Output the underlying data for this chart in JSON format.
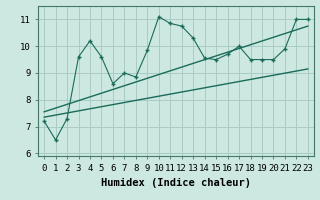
{
  "title": "",
  "xlabel": "Humidex (Indice chaleur)",
  "ylabel": "",
  "bg_color": "#cce8e0",
  "grid_color": "#aaccc4",
  "line_color": "#1a6b5a",
  "scatter_x": [
    0,
    1,
    2,
    3,
    4,
    5,
    6,
    7,
    8,
    9,
    10,
    11,
    12,
    13,
    14,
    15,
    16,
    17,
    18,
    19,
    20,
    21,
    22,
    23
  ],
  "scatter_y": [
    7.2,
    6.5,
    7.3,
    9.6,
    10.2,
    9.6,
    8.6,
    9.0,
    8.85,
    9.85,
    11.1,
    10.85,
    10.75,
    10.3,
    9.55,
    9.5,
    9.7,
    10.0,
    9.5,
    9.5,
    9.5,
    9.9,
    11.0,
    11.0
  ],
  "line1_x": [
    0,
    23
  ],
  "line1_y": [
    7.55,
    10.75
  ],
  "line2_x": [
    0,
    23
  ],
  "line2_y": [
    7.35,
    9.15
  ],
  "xlim": [
    -0.5,
    23.5
  ],
  "ylim": [
    5.9,
    11.5
  ],
  "yticks": [
    6,
    7,
    8,
    9,
    10,
    11
  ],
  "xticks": [
    0,
    1,
    2,
    3,
    4,
    5,
    6,
    7,
    8,
    9,
    10,
    11,
    12,
    13,
    14,
    15,
    16,
    17,
    18,
    19,
    20,
    21,
    22,
    23
  ],
  "xlabel_fontsize": 7.5,
  "tick_fontsize": 6.5
}
